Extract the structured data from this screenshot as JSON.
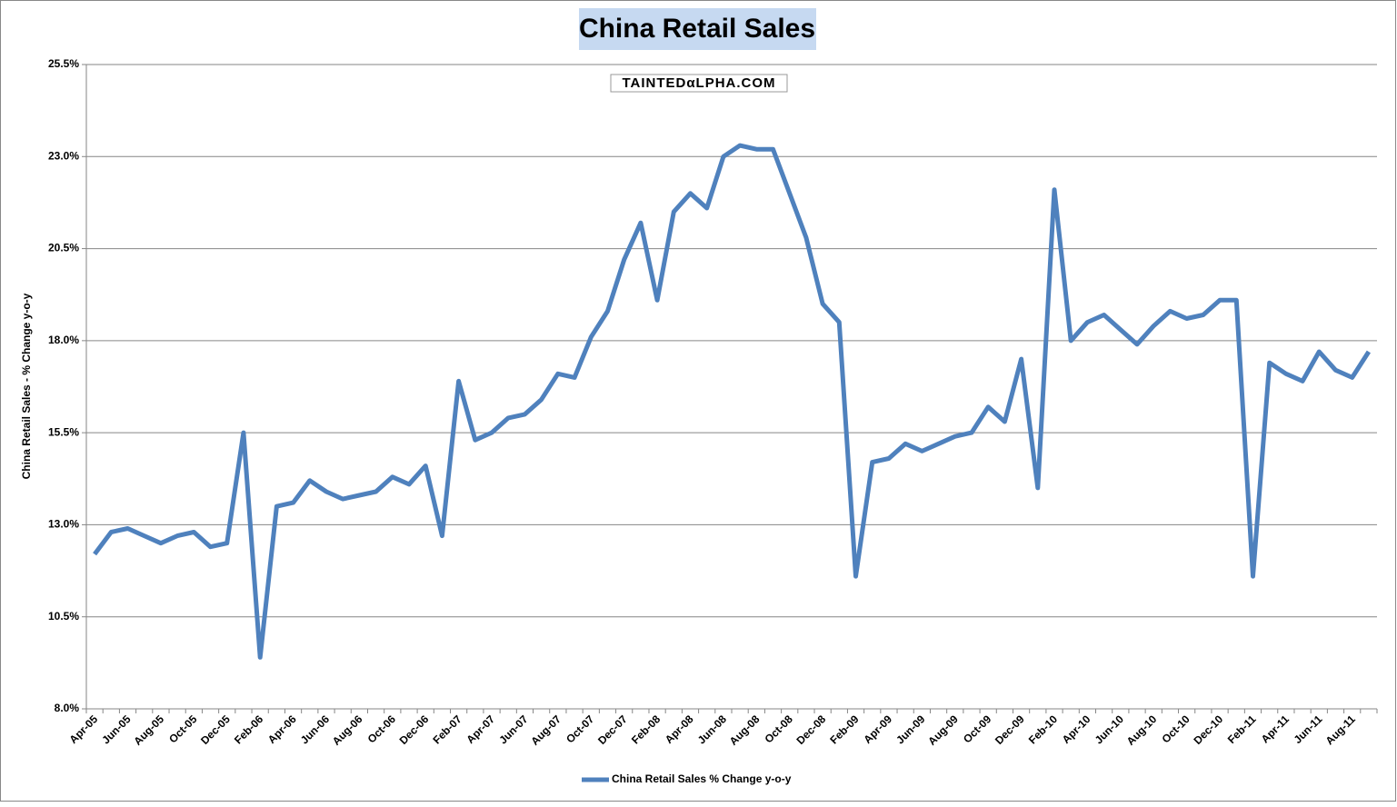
{
  "chart_data": {
    "type": "line",
    "title": "China Retail Sales",
    "watermark": "TAINTEDαLPHA.COM",
    "y_label": "China Retail Sales - % Change y-o-y",
    "categories": [
      "Apr-05",
      null,
      "Jun-05",
      null,
      "Aug-05",
      null,
      "Oct-05",
      null,
      "Dec-05",
      null,
      "Feb-06",
      null,
      "Apr-06",
      null,
      "Jun-06",
      null,
      "Aug-06",
      null,
      "Oct-06",
      null,
      "Dec-06",
      null,
      "Feb-07",
      null,
      "Apr-07",
      null,
      "Jun-07",
      null,
      "Aug-07",
      null,
      "Oct-07",
      null,
      "Dec-07",
      null,
      "Feb-08",
      null,
      "Apr-08",
      null,
      "Jun-08",
      null,
      "Aug-08",
      null,
      "Oct-08",
      null,
      "Dec-08",
      null,
      "Feb-09",
      null,
      "Apr-09",
      null,
      "Jun-09",
      null,
      "Aug-09",
      null,
      "Oct-09",
      null,
      "Dec-09",
      null,
      "Feb-10",
      null,
      "Apr-10",
      null,
      "Jun-10",
      null,
      "Aug-10",
      null,
      "Oct-10",
      null,
      "Dec-10",
      null,
      "Feb-11",
      null,
      "Apr-11",
      null,
      "Jun-11",
      null,
      "Aug-11",
      null
    ],
    "series": [
      {
        "name": "China Retail Sales % Change y-o-y",
        "color": "#4f81bd",
        "values": [
          12.2,
          12.8,
          12.9,
          12.7,
          12.5,
          12.7,
          12.8,
          12.4,
          12.5,
          15.5,
          9.4,
          13.5,
          13.6,
          14.2,
          13.9,
          13.7,
          13.8,
          13.9,
          14.3,
          14.1,
          14.6,
          12.7,
          16.9,
          15.3,
          15.5,
          15.9,
          16.0,
          16.4,
          17.1,
          17.0,
          18.1,
          18.8,
          20.2,
          21.2,
          19.1,
          21.5,
          22.0,
          21.6,
          23.0,
          23.3,
          23.2,
          23.2,
          22.0,
          20.8,
          19.0,
          18.5,
          11.6,
          14.7,
          14.8,
          15.2,
          15.0,
          15.2,
          15.4,
          15.5,
          16.2,
          15.8,
          17.5,
          14.0,
          22.1,
          18.0,
          18.5,
          18.7,
          18.3,
          17.9,
          18.4,
          18.8,
          18.6,
          18.7,
          19.1,
          19.1,
          11.6,
          17.4,
          17.1,
          16.9,
          17.7,
          17.2,
          17.0,
          17.7
        ]
      }
    ],
    "ylim": [
      8.0,
      25.5
    ],
    "yticks": [
      {
        "value": 8.0,
        "label": "8.0%"
      },
      {
        "value": 10.5,
        "label": "10.5%"
      },
      {
        "value": 13.0,
        "label": "13.0%"
      },
      {
        "value": 15.5,
        "label": "15.5%"
      },
      {
        "value": 18.0,
        "label": "18.0%"
      },
      {
        "value": 20.5,
        "label": "20.5%"
      },
      {
        "value": 23.0,
        "label": "23.0%"
      },
      {
        "value": 25.5,
        "label": "25.5%"
      }
    ],
    "grid": true,
    "legend": "bottom"
  }
}
